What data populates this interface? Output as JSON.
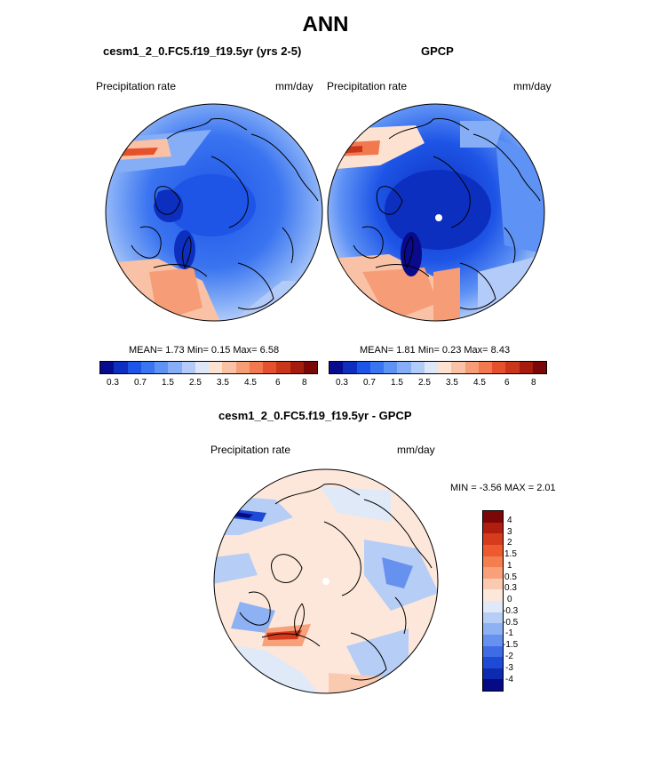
{
  "title": "ANN",
  "panels": {
    "model": {
      "title": "cesm1_2_0.FC5.f19_f19.5yr (yrs 2-5)",
      "left_label": "Precipitation rate",
      "right_label": "mm/day",
      "stats": "MEAN=   1.73  Min=   0.15  Max=   6.58"
    },
    "obs": {
      "title": "GPCP",
      "left_label": "Precipitation rate",
      "right_label": "mm/day",
      "stats": "MEAN=   1.81  Min=   0.23  Max=   8.43"
    },
    "diff": {
      "title": "cesm1_2_0.FC5.f19_f19.5yr - GPCP",
      "left_label": "Precipitation rate",
      "right_label": "mm/day",
      "stats": "MIN =  -3.56 MAX =   2.01"
    }
  },
  "colorbar_abs": {
    "tick_labels": [
      "0.3",
      "0.7",
      "1.5",
      "2.5",
      "3.5",
      "4.5",
      "6",
      "8"
    ],
    "colors": [
      "#0a0a8c",
      "#0c2fc0",
      "#1e55e6",
      "#3a74f0",
      "#5e92f5",
      "#85aef7",
      "#b3cbf8",
      "#dde7f8",
      "#fde2d2",
      "#f9c1a5",
      "#f69d77",
      "#f2784d",
      "#e4512c",
      "#c9361c",
      "#a41c0e",
      "#7c0707"
    ]
  },
  "colorbar_diff": {
    "tick_labels": [
      "4",
      "3",
      "2",
      "1.5",
      "1",
      "0.5",
      "0.3",
      "0",
      "-0.3",
      "-0.5",
      "-1",
      "-1.5",
      "-2",
      "-3",
      "-4"
    ],
    "colors": [
      "#7c0707",
      "#b01e0f",
      "#d63b1e",
      "#ee5a30",
      "#f47e50",
      "#f7a07a",
      "#facab0",
      "#fde7da",
      "#dfe9f8",
      "#b6cdf6",
      "#8eb1f3",
      "#6791ef",
      "#3e6ce6",
      "#1f4ad6",
      "#0d2ab0",
      "#060a85"
    ]
  }
}
